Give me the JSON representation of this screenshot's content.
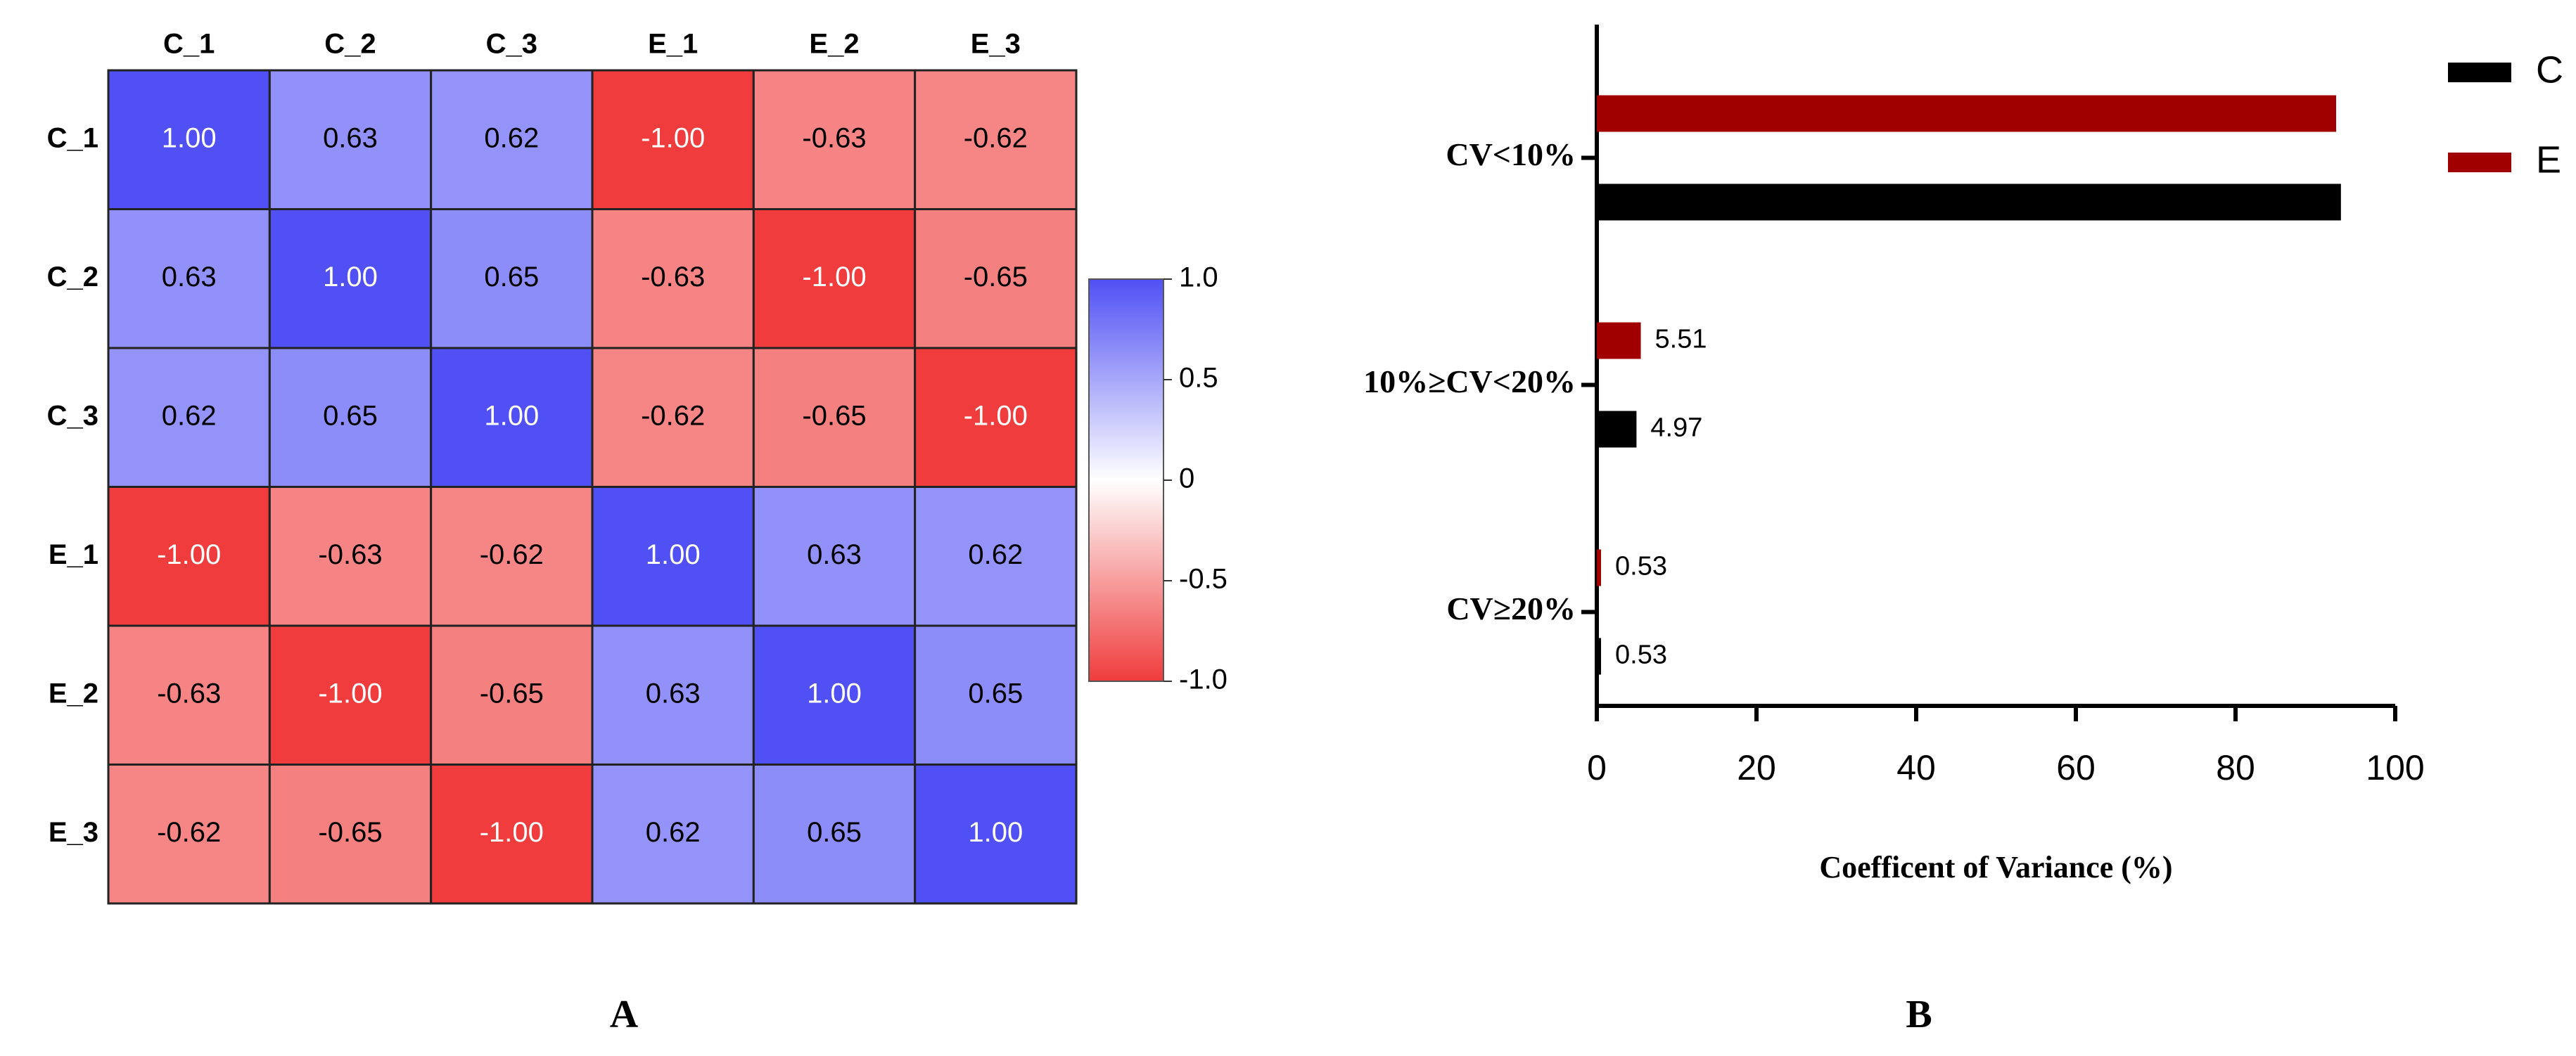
{
  "chart_data": [
    {
      "type": "heatmap",
      "panel_label": "A",
      "rows": [
        "C_1",
        "C_2",
        "C_3",
        "E_1",
        "E_2",
        "E_3"
      ],
      "columns": [
        "C_1",
        "C_2",
        "C_3",
        "E_1",
        "E_2",
        "E_3"
      ],
      "values": [
        [
          1,
          0.63,
          0.62,
          -1,
          -0.63,
          -0.62
        ],
        [
          0.63,
          1,
          0.65,
          -0.63,
          -1,
          -0.65
        ],
        [
          0.62,
          0.65,
          1,
          -0.62,
          -0.65,
          -1
        ],
        [
          -1,
          -0.63,
          -0.62,
          1,
          0.63,
          0.62
        ],
        [
          -0.63,
          -1,
          -0.65,
          0.63,
          1,
          0.65
        ],
        [
          -0.62,
          -0.65,
          -1,
          0.62,
          0.65,
          1
        ]
      ],
      "value_labels": [
        [
          "1.00",
          "0.63",
          "0.62",
          "-1.00",
          "-0.63",
          "-0.62"
        ],
        [
          "0.63",
          "1.00",
          "0.65",
          "-0.63",
          "-1.00",
          "-0.65"
        ],
        [
          "0.62",
          "0.65",
          "1.00",
          "-0.62",
          "-0.65",
          "-1.00"
        ],
        [
          "-1.00",
          "-0.63",
          "-0.62",
          "1.00",
          "0.63",
          "0.62"
        ],
        [
          "-0.63",
          "-1.00",
          "-0.65",
          "0.63",
          "1.00",
          "0.65"
        ],
        [
          "-0.62",
          "-0.65",
          "-1.00",
          "0.62",
          "0.65",
          "1.00"
        ]
      ],
      "colorscale": [
        "#f03c3c",
        "#ffffff",
        "#5050f5"
      ],
      "clim": [
        -1,
        1
      ],
      "cticks": [
        {
          "value": 1,
          "label": "1.0"
        },
        0.5,
        0,
        -0.5,
        {
          "value": -1,
          "label": "-1.0"
        }
      ]
    },
    {
      "type": "hbar",
      "panel_label": "B",
      "categories": [
        "CV<10%",
        "10%≥CV<20%",
        "CV≥20%"
      ],
      "series": [
        {
          "name": "C",
          "color": "#000000",
          "values": [
            93.2,
            4.97,
            0.53
          ],
          "value_labels": [
            null,
            "4.97",
            "0.53"
          ]
        },
        {
          "name": "E",
          "color": "#a00000",
          "values": [
            92.6,
            5.51,
            0.53
          ],
          "value_labels": [
            null,
            "5.51",
            "0.53"
          ]
        }
      ],
      "xlabel": "Coefficent of Variance (%)",
      "xlim": [
        0,
        100
      ],
      "xticks": [
        0,
        20,
        40,
        60,
        80,
        100
      ],
      "legend": "top-right"
    }
  ]
}
